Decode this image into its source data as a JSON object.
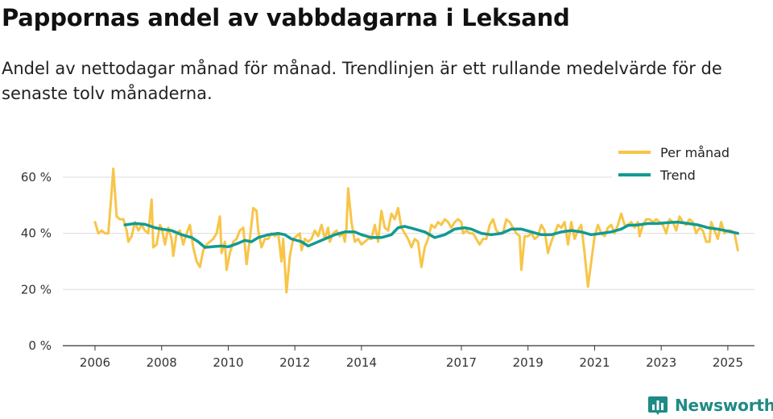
{
  "header": {
    "title": "Pappornas andel av vabbdagarna i Leksand",
    "subtitle": "Andel av nettodagar månad för månad. Trendlinjen är ett rullande medelvärde för de senaste tolv månaderna."
  },
  "brand": {
    "name": "Newsworthy",
    "icon": "bar-chart-logo-icon",
    "color": "#1f8a86"
  },
  "chart_data": {
    "type": "line",
    "title": "Pappornas andel av vabbdagarna i Leksand",
    "xlabel": "",
    "ylabel": "",
    "ylim": [
      0,
      70
    ],
    "xlim": [
      2006.0,
      2025.8
    ],
    "y_ticks": [
      {
        "value": 0,
        "label": "0 %"
      },
      {
        "value": 20,
        "label": "20 %"
      },
      {
        "value": 40,
        "label": "40 %"
      },
      {
        "value": 60,
        "label": "60 %"
      }
    ],
    "x_ticks": [
      {
        "value": 2006,
        "label": "2006"
      },
      {
        "value": 2008,
        "label": "2008"
      },
      {
        "value": 2010,
        "label": "2010"
      },
      {
        "value": 2012,
        "label": "2012"
      },
      {
        "value": 2014,
        "label": "2014"
      },
      {
        "value": 2017,
        "label": "2017"
      },
      {
        "value": 2019,
        "label": "2019"
      },
      {
        "value": 2021,
        "label": "2021"
      },
      {
        "value": 2023,
        "label": "2023"
      },
      {
        "value": 2025,
        "label": "2025"
      }
    ],
    "grid": true,
    "legend_position": "top-right",
    "series": [
      {
        "name": "Per månad",
        "color": "#f7c548",
        "points": [
          [
            2006.0,
            44
          ],
          [
            2006.1,
            40
          ],
          [
            2006.2,
            41
          ],
          [
            2006.3,
            40
          ],
          [
            2006.4,
            40
          ],
          [
            2006.5,
            55
          ],
          [
            2006.55,
            63
          ],
          [
            2006.65,
            46
          ],
          [
            2006.75,
            45
          ],
          [
            2006.85,
            45
          ],
          [
            2006.95,
            41
          ],
          [
            2007.0,
            37
          ],
          [
            2007.1,
            39
          ],
          [
            2007.2,
            44
          ],
          [
            2007.3,
            41
          ],
          [
            2007.4,
            43
          ],
          [
            2007.5,
            41
          ],
          [
            2007.6,
            40
          ],
          [
            2007.7,
            52
          ],
          [
            2007.75,
            35
          ],
          [
            2007.85,
            36
          ],
          [
            2007.95,
            43
          ],
          [
            2008.0,
            42
          ],
          [
            2008.1,
            36
          ],
          [
            2008.2,
            42
          ],
          [
            2008.3,
            38
          ],
          [
            2008.35,
            32
          ],
          [
            2008.45,
            40
          ],
          [
            2008.55,
            41
          ],
          [
            2008.65,
            36
          ],
          [
            2008.75,
            40
          ],
          [
            2008.85,
            43
          ],
          [
            2008.95,
            35
          ],
          [
            2009.05,
            30
          ],
          [
            2009.15,
            28
          ],
          [
            2009.25,
            34
          ],
          [
            2009.35,
            36
          ],
          [
            2009.45,
            37
          ],
          [
            2009.55,
            38
          ],
          [
            2009.65,
            40
          ],
          [
            2009.75,
            46
          ],
          [
            2009.8,
            33
          ],
          [
            2009.9,
            37
          ],
          [
            2009.95,
            27
          ],
          [
            2010.05,
            33
          ],
          [
            2010.15,
            37
          ],
          [
            2010.25,
            38
          ],
          [
            2010.35,
            41
          ],
          [
            2010.45,
            42
          ],
          [
            2010.55,
            29
          ],
          [
            2010.65,
            38
          ],
          [
            2010.75,
            49
          ],
          [
            2010.85,
            48
          ],
          [
            2010.9,
            41
          ],
          [
            2011.0,
            35
          ],
          [
            2011.1,
            38
          ],
          [
            2011.2,
            38
          ],
          [
            2011.3,
            40
          ],
          [
            2011.4,
            39
          ],
          [
            2011.5,
            40
          ],
          [
            2011.6,
            30
          ],
          [
            2011.65,
            38
          ],
          [
            2011.75,
            19
          ],
          [
            2011.85,
            32
          ],
          [
            2011.95,
            38
          ],
          [
            2012.05,
            39
          ],
          [
            2012.15,
            40
          ],
          [
            2012.2,
            34
          ],
          [
            2012.3,
            38
          ],
          [
            2012.4,
            37
          ],
          [
            2012.5,
            38
          ],
          [
            2012.6,
            41
          ],
          [
            2012.7,
            39
          ],
          [
            2012.8,
            43
          ],
          [
            2012.9,
            38
          ],
          [
            2013.0,
            42
          ],
          [
            2013.05,
            37
          ],
          [
            2013.15,
            40
          ],
          [
            2013.25,
            41
          ],
          [
            2013.35,
            39
          ],
          [
            2013.45,
            40
          ],
          [
            2013.5,
            37
          ],
          [
            2013.55,
            42
          ],
          [
            2013.6,
            56
          ],
          [
            2013.7,
            44
          ],
          [
            2013.8,
            37
          ],
          [
            2013.9,
            38
          ],
          [
            2014.0,
            36
          ],
          [
            2014.1,
            37
          ],
          [
            2014.2,
            38
          ],
          [
            2014.3,
            38
          ],
          [
            2014.4,
            43
          ],
          [
            2014.5,
            37
          ],
          [
            2014.6,
            48
          ],
          [
            2014.7,
            42
          ],
          [
            2014.8,
            41
          ],
          [
            2014.9,
            47
          ],
          [
            2015.0,
            45
          ],
          [
            2015.1,
            49
          ],
          [
            2015.2,
            42
          ],
          [
            2015.3,
            40
          ],
          [
            2015.4,
            38
          ],
          [
            2015.5,
            35
          ],
          [
            2015.6,
            38
          ],
          [
            2015.7,
            37
          ],
          [
            2015.8,
            28
          ],
          [
            2015.9,
            35
          ],
          [
            2016.0,
            38
          ],
          [
            2016.1,
            43
          ],
          [
            2016.2,
            42
          ],
          [
            2016.3,
            44
          ],
          [
            2016.4,
            43
          ],
          [
            2016.5,
            45
          ],
          [
            2016.6,
            44
          ],
          [
            2016.7,
            42
          ],
          [
            2016.8,
            44
          ],
          [
            2016.9,
            45
          ],
          [
            2017.0,
            44
          ],
          [
            2017.05,
            40
          ],
          [
            2017.15,
            41
          ],
          [
            2017.25,
            40
          ],
          [
            2017.35,
            40
          ],
          [
            2017.45,
            38
          ],
          [
            2017.55,
            36
          ],
          [
            2017.65,
            38
          ],
          [
            2017.75,
            38
          ],
          [
            2017.85,
            43
          ],
          [
            2017.95,
            45
          ],
          [
            2018.05,
            41
          ],
          [
            2018.15,
            40
          ],
          [
            2018.25,
            40
          ],
          [
            2018.35,
            45
          ],
          [
            2018.45,
            44
          ],
          [
            2018.55,
            42
          ],
          [
            2018.65,
            40
          ],
          [
            2018.75,
            39
          ],
          [
            2018.8,
            27
          ],
          [
            2018.9,
            39
          ],
          [
            2019.0,
            39
          ],
          [
            2019.1,
            40
          ],
          [
            2019.2,
            38
          ],
          [
            2019.3,
            39
          ],
          [
            2019.4,
            43
          ],
          [
            2019.5,
            41
          ],
          [
            2019.6,
            33
          ],
          [
            2019.7,
            37
          ],
          [
            2019.8,
            40
          ],
          [
            2019.9,
            43
          ],
          [
            2020.0,
            42
          ],
          [
            2020.1,
            44
          ],
          [
            2020.2,
            36
          ],
          [
            2020.3,
            44
          ],
          [
            2020.4,
            38
          ],
          [
            2020.5,
            41
          ],
          [
            2020.6,
            43
          ],
          [
            2020.7,
            33
          ],
          [
            2020.8,
            21
          ],
          [
            2020.9,
            30
          ],
          [
            2021.0,
            39
          ],
          [
            2021.1,
            43
          ],
          [
            2021.2,
            40
          ],
          [
            2021.3,
            39
          ],
          [
            2021.4,
            42
          ],
          [
            2021.5,
            43
          ],
          [
            2021.6,
            40
          ],
          [
            2021.7,
            43
          ],
          [
            2021.8,
            47
          ],
          [
            2021.9,
            43
          ],
          [
            2022.0,
            43
          ],
          [
            2022.1,
            44
          ],
          [
            2022.2,
            42
          ],
          [
            2022.3,
            44
          ],
          [
            2022.35,
            39
          ],
          [
            2022.45,
            43
          ],
          [
            2022.55,
            45
          ],
          [
            2022.65,
            45
          ],
          [
            2022.75,
            44
          ],
          [
            2022.85,
            45
          ],
          [
            2022.95,
            44
          ],
          [
            2023.05,
            43
          ],
          [
            2023.15,
            40
          ],
          [
            2023.25,
            45
          ],
          [
            2023.35,
            44
          ],
          [
            2023.45,
            41
          ],
          [
            2023.55,
            46
          ],
          [
            2023.65,
            44
          ],
          [
            2023.75,
            43
          ],
          [
            2023.85,
            45
          ],
          [
            2023.95,
            44
          ],
          [
            2024.05,
            40
          ],
          [
            2024.15,
            42
          ],
          [
            2024.25,
            41
          ],
          [
            2024.35,
            37
          ],
          [
            2024.45,
            37
          ],
          [
            2024.5,
            44
          ],
          [
            2024.6,
            41
          ],
          [
            2024.7,
            38
          ],
          [
            2024.8,
            44
          ],
          [
            2024.9,
            40
          ],
          [
            2025.0,
            41
          ],
          [
            2025.1,
            41
          ],
          [
            2025.2,
            40
          ],
          [
            2025.3,
            34
          ]
        ]
      },
      {
        "name": "Trend",
        "color": "#129a92",
        "points": [
          [
            2006.9,
            43
          ],
          [
            2007.2,
            43.5
          ],
          [
            2007.5,
            43.2
          ],
          [
            2007.8,
            42
          ],
          [
            2008.0,
            41.5
          ],
          [
            2008.3,
            41
          ],
          [
            2008.6,
            39.5
          ],
          [
            2008.9,
            38.5
          ],
          [
            2009.1,
            37
          ],
          [
            2009.3,
            35
          ],
          [
            2009.5,
            35.2
          ],
          [
            2009.8,
            35.5
          ],
          [
            2010.0,
            35.2
          ],
          [
            2010.3,
            36.5
          ],
          [
            2010.5,
            37.5
          ],
          [
            2010.7,
            37
          ],
          [
            2010.9,
            38.5
          ],
          [
            2011.2,
            39.5
          ],
          [
            2011.5,
            40
          ],
          [
            2011.7,
            39.5
          ],
          [
            2011.9,
            38
          ],
          [
            2012.2,
            37
          ],
          [
            2012.4,
            35.5
          ],
          [
            2012.6,
            36.5
          ],
          [
            2012.9,
            38
          ],
          [
            2013.2,
            39.5
          ],
          [
            2013.5,
            40.5
          ],
          [
            2013.8,
            40.5
          ],
          [
            2014.0,
            39.5
          ],
          [
            2014.3,
            38.5
          ],
          [
            2014.6,
            38.5
          ],
          [
            2014.9,
            39.5
          ],
          [
            2015.1,
            42
          ],
          [
            2015.3,
            42.5
          ],
          [
            2015.6,
            41.5
          ],
          [
            2015.9,
            40.5
          ],
          [
            2016.2,
            38.5
          ],
          [
            2016.5,
            39.5
          ],
          [
            2016.8,
            41.5
          ],
          [
            2017.1,
            42
          ],
          [
            2017.3,
            41.5
          ],
          [
            2017.6,
            40
          ],
          [
            2017.9,
            39.5
          ],
          [
            2018.2,
            40
          ],
          [
            2018.5,
            41.5
          ],
          [
            2018.8,
            41.5
          ],
          [
            2019.1,
            40.5
          ],
          [
            2019.4,
            39.5
          ],
          [
            2019.7,
            39.5
          ],
          [
            2020.0,
            40.5
          ],
          [
            2020.3,
            41
          ],
          [
            2020.6,
            40.5
          ],
          [
            2020.9,
            39.5
          ],
          [
            2021.2,
            40
          ],
          [
            2021.5,
            40.5
          ],
          [
            2021.8,
            41.5
          ],
          [
            2022.0,
            42.8
          ],
          [
            2022.3,
            43
          ],
          [
            2022.6,
            43.5
          ],
          [
            2022.9,
            43.5
          ],
          [
            2023.2,
            43.8
          ],
          [
            2023.5,
            44
          ],
          [
            2023.8,
            43.5
          ],
          [
            2024.1,
            43
          ],
          [
            2024.4,
            42
          ],
          [
            2024.7,
            41.5
          ],
          [
            2025.0,
            40.8
          ],
          [
            2025.3,
            40
          ]
        ]
      }
    ]
  }
}
